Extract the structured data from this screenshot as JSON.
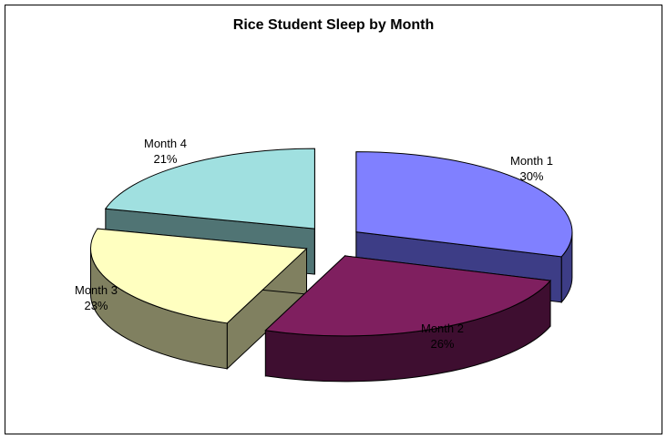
{
  "chart_data": {
    "type": "pie",
    "title": "Rice Student Sleep by Month",
    "categories": [
      "Month 1",
      "Month 2",
      "Month 3",
      "Month 4"
    ],
    "values": [
      30,
      26,
      23,
      21
    ],
    "value_labels": [
      "30%",
      "26%",
      "23%",
      "21%"
    ],
    "exploded": true,
    "three_d": true,
    "legend": "none",
    "colors": {
      "top": [
        "#8080ff",
        "#7f1f5f",
        "#ffffc0",
        "#a0e0e0"
      ],
      "side": [
        "#3d3d86",
        "#3e0e30",
        "#808060",
        "#507474"
      ]
    }
  }
}
